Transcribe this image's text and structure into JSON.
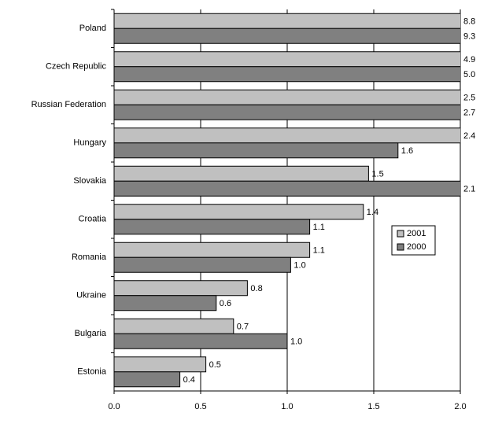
{
  "chart_data": {
    "type": "bar",
    "orientation": "horizontal",
    "categories": [
      "Poland",
      "Czech Republic",
      "Russian Federation",
      "Hungary",
      "Slovakia",
      "Croatia",
      "Romania",
      "Ukraine",
      "Bulgaria",
      "Estonia"
    ],
    "series": [
      {
        "name": "2001",
        "color": "#c0c0c0",
        "values": [
          8.8,
          4.9,
          2.5,
          2.4,
          1.47,
          1.44,
          1.13,
          0.77,
          0.69,
          0.53
        ],
        "value_labels": [
          "8.8",
          "4.9",
          "2.5",
          "2.4",
          "1.5",
          "1.4",
          "1.1",
          "0.8",
          "0.7",
          "0.5"
        ]
      },
      {
        "name": "2000",
        "color": "#808080",
        "values": [
          9.3,
          5.0,
          2.7,
          1.64,
          2.1,
          1.13,
          1.02,
          0.59,
          1.0,
          0.38
        ],
        "value_labels": [
          "9.3",
          "5.0",
          "2.7",
          "1.6",
          "2.1",
          "1.1",
          "1.0",
          "0.6",
          "1.0",
          "0.4"
        ]
      }
    ],
    "xlim": [
      0,
      2
    ],
    "xticks": [
      {
        "value": 0,
        "label": "0.0"
      },
      0.5,
      {
        "value": 1,
        "label": "1.0"
      },
      1.5,
      {
        "value": 2,
        "label": "2.0"
      }
    ],
    "grid": true,
    "legend": "right"
  }
}
